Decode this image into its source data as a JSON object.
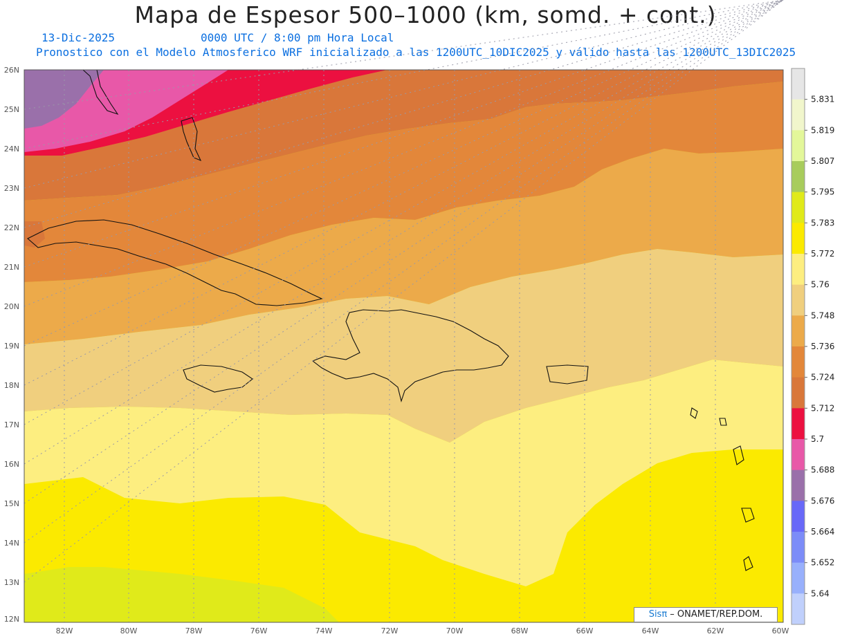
{
  "header": {
    "title": "Mapa de Espesor 500–1000 (km, somd. + cont.)",
    "date": "13-Dic-2025",
    "utc": "0000 UTC / 8:00 pm Hora Local",
    "description": "Pronostico con el Modelo Atmosferico WRF inicializado a las 1200UTC_10DIC2025 y válido hasta las  1200UTC_13DIC2025"
  },
  "axes": {
    "lat_labels": [
      "26N",
      "25N",
      "24N",
      "23N",
      "22N",
      "21N",
      "20N",
      "19N",
      "18N",
      "17N",
      "16N",
      "15N",
      "14N",
      "13N",
      "12N"
    ],
    "lon_labels": [
      "82W",
      "80W",
      "78W",
      "76W",
      "74W",
      "72W",
      "70W",
      "68W",
      "66W",
      "64W",
      "62W",
      "60W"
    ]
  },
  "colorbar": {
    "levels": [
      "5.831",
      "5.819",
      "5.807",
      "5.795",
      "5.783",
      "5.772",
      "5.76",
      "5.748",
      "5.736",
      "5.724",
      "5.712",
      "5.7",
      "5.688",
      "5.676",
      "5.664",
      "5.652",
      "5.64"
    ],
    "colors": [
      "#e6e6e6",
      "#f1f6cc",
      "#e3f79a",
      "#a8cc5c",
      "#e0ea1a",
      "#fbea00",
      "#fdee80",
      "#f0cf7e",
      "#ecaa4a",
      "#e3873a",
      "#d9773a",
      "#ec1040",
      "#e858a8",
      "#9a70aa",
      "#6868f8",
      "#7c8cf8",
      "#98b0fc",
      "#c0d0fc"
    ]
  },
  "bands": {
    "purple": "#9a70aa",
    "pink": "#e858a8",
    "red": "#ec1040",
    "dark_orange": "#d9773a",
    "orange": "#e3873a",
    "light_orange": "#ecaa4a",
    "tan": "#f0cf7e",
    "pale_yellow": "#fdee80",
    "yellow": "#fbea00",
    "lime": "#e0ea1a"
  },
  "credit": {
    "logo": "Sisπ",
    "text": " –  ONAMET/REP.DOM."
  }
}
